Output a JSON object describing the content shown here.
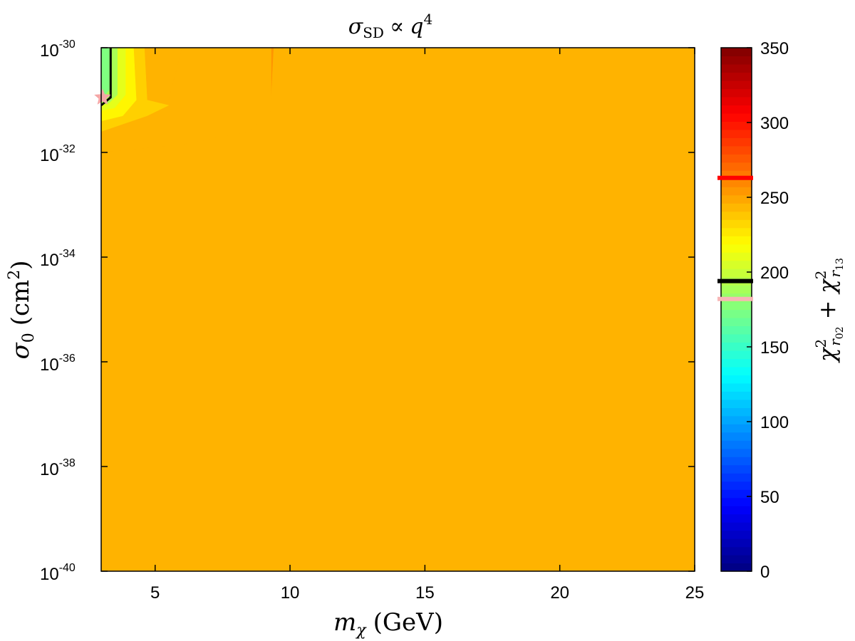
{
  "chart_data": {
    "type": "heatmap",
    "title": "σ_SD ∝ q^4",
    "title_parts": {
      "sigma": "σ",
      "sub": "SD",
      "rel": "∝",
      "q": "q",
      "pow": "4"
    },
    "xlabel": "m_χ (GeV)",
    "xlabel_parts": {
      "m": "m",
      "sub": "χ",
      "rest": "(GeV)"
    },
    "ylabel": "σ_0 (cm^2)",
    "ylabel_parts": {
      "sigma": "σ",
      "sub": "0",
      "open": "(cm",
      "pow": "2",
      "close": ")"
    },
    "colorbar_label": "χ²_r02 + χ²_r13",
    "colorbar_label_parts": {
      "chi1": "χ",
      "sup1": "2",
      "sub1": "r",
      "subsub1": "02",
      "plus": "+",
      "chi2": "χ",
      "sup2": "2",
      "sub2": "r",
      "subsub2": "13"
    },
    "xlim": [
      3,
      25
    ],
    "ylim_log10": [
      -40,
      -30
    ],
    "xticks": [
      5,
      10,
      15,
      20,
      25
    ],
    "xtick_labels": [
      "5",
      "10",
      "15",
      "20",
      "25"
    ],
    "yticks_log10": [
      -40,
      -38,
      -36,
      -34,
      -32,
      -30
    ],
    "ytick_labels": [
      {
        "base": "10",
        "exp": "-40"
      },
      {
        "base": "10",
        "exp": "-38"
      },
      {
        "base": "10",
        "exp": "-36"
      },
      {
        "base": "10",
        "exp": "-34"
      },
      {
        "base": "10",
        "exp": "-32"
      },
      {
        "base": "10",
        "exp": "-30"
      }
    ],
    "colorbar_range": [
      0,
      350
    ],
    "colorbar_ticks": [
      0,
      50,
      100,
      150,
      200,
      250,
      300,
      350
    ],
    "colorbar_tick_labels": [
      "0",
      "50",
      "100",
      "150",
      "200",
      "250",
      "300",
      "350"
    ],
    "colormap": "jet",
    "background_value": 255,
    "regions": [
      {
        "value": 245,
        "boundary": [
          [
            3,
            -30
          ],
          [
            6.0,
            -30
          ],
          [
            5.5,
            -31
          ],
          [
            6.0,
            -31.1
          ],
          [
            9.3,
            -31.0
          ],
          [
            9.4,
            -30
          ],
          [
            25,
            -30
          ],
          [
            25,
            -40
          ],
          [
            3,
            -40
          ],
          [
            3,
            -32
          ]
        ]
      },
      {
        "value": 245,
        "boundary": [
          [
            3,
            -32
          ],
          [
            6,
            -31.85
          ],
          [
            8.5,
            -31.6
          ],
          [
            9.3,
            -31.2
          ],
          [
            9.3,
            -30
          ],
          [
            6,
            -30
          ],
          [
            5.5,
            -31
          ],
          [
            4.8,
            -31.1
          ],
          [
            4.6,
            -30
          ],
          [
            3,
            -30
          ]
        ]
      },
      {
        "value": 235,
        "boundary": [
          [
            3,
            -30
          ],
          [
            4.6,
            -30
          ],
          [
            4.7,
            -31.0
          ],
          [
            5.5,
            -31.1
          ],
          [
            4.7,
            -31.3
          ],
          [
            3,
            -31.6
          ]
        ]
      },
      {
        "value": 222,
        "boundary": [
          [
            3,
            -30
          ],
          [
            4.2,
            -30
          ],
          [
            4.3,
            -31.0
          ],
          [
            3.8,
            -31.3
          ],
          [
            3,
            -31.4
          ]
        ]
      },
      {
        "value": 210,
        "boundary": [
          [
            3,
            -30
          ],
          [
            3.9,
            -30
          ],
          [
            3.9,
            -30.9
          ],
          [
            3.5,
            -31.15
          ],
          [
            3,
            -31.2
          ]
        ]
      },
      {
        "value": 190,
        "boundary": [
          [
            3,
            -30
          ],
          [
            3.6,
            -30
          ],
          [
            3.6,
            -30.9
          ],
          [
            3.3,
            -31.05
          ],
          [
            3,
            -31.1
          ]
        ]
      },
      {
        "value": 175,
        "boundary": [
          [
            3,
            -30
          ],
          [
            3.3,
            -30
          ],
          [
            3.3,
            -30.8
          ],
          [
            3.0,
            -31.0
          ]
        ]
      }
    ],
    "contours": [
      {
        "level_color": "#000000",
        "points": [
          [
            3.35,
            -30
          ],
          [
            3.35,
            -30.95
          ],
          [
            3.0,
            -31.1
          ]
        ]
      }
    ],
    "best_fit": {
      "x": 3.05,
      "y_log10": -30.95,
      "color": "#f4a6a6"
    },
    "colorbar_markers": [
      {
        "value": 263,
        "color": "#ff0000"
      },
      {
        "value": 194,
        "color": "#000000"
      },
      {
        "value": 182,
        "color": "#f7b6b6"
      }
    ]
  }
}
